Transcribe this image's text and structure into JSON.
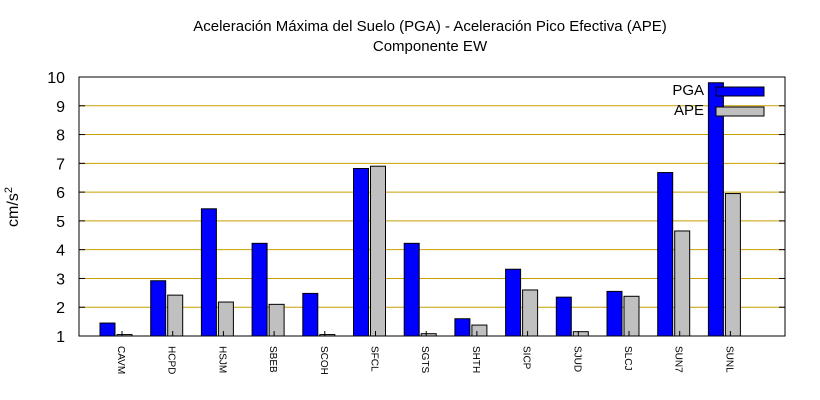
{
  "chart_data": {
    "type": "bar",
    "title": "Aceleración Máxima del Suelo (PGA) -  Aceleración Pico Efectiva (APE)",
    "subtitle": "Componente EW",
    "ylabel": "cm/s",
    "ylabel_sup": "2",
    "xlabel": "",
    "ylim": [
      1,
      10
    ],
    "yticks": [
      "1",
      "2",
      "3",
      "4",
      "5",
      "6",
      "7",
      "8",
      "9",
      "10"
    ],
    "grid": true,
    "grid_color": "#c8a000",
    "legend_position": "top-right",
    "categories": [
      "CAVM",
      "HCPD",
      "HSJM",
      "SBEB",
      "SCOH",
      "SFCL",
      "SGTS",
      "SHTH",
      "SICP",
      "SJUD",
      "SLCJ",
      "SUN7",
      "SUNL"
    ],
    "series": [
      {
        "name": "PGA",
        "color": "#0000ff",
        "values": [
          1.45,
          2.92,
          5.42,
          4.22,
          2.48,
          6.82,
          4.22,
          1.6,
          3.32,
          2.35,
          2.55,
          6.68,
          9.8
        ]
      },
      {
        "name": "APE",
        "color": "#c0c0c0",
        "values": [
          1.05,
          2.42,
          2.18,
          2.1,
          1.05,
          6.9,
          1.08,
          1.38,
          2.6,
          1.15,
          2.38,
          4.65,
          5.95
        ]
      }
    ]
  }
}
